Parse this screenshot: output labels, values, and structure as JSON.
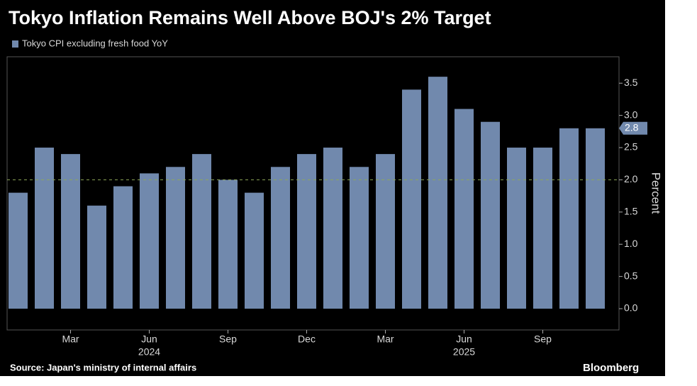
{
  "chart_data": {
    "type": "bar",
    "title": "Tokyo Inflation Remains Well Above BOJ's 2% Target",
    "categories": [
      null,
      null,
      "Mar",
      null,
      null,
      "Jun",
      null,
      null,
      "Sep",
      null,
      null,
      "Dec",
      null,
      null,
      "Mar",
      null,
      null,
      "Jun",
      null,
      null,
      "Sep",
      null,
      null
    ],
    "category_years": [
      null,
      null,
      null,
      null,
      null,
      "2024",
      null,
      null,
      null,
      null,
      null,
      null,
      null,
      null,
      null,
      null,
      null,
      "2025",
      null,
      null,
      null,
      null,
      null
    ],
    "series": [
      {
        "name": "Tokyo CPI excluding fresh food YoY",
        "color": "#7189ad",
        "values": [
          1.8,
          2.5,
          2.4,
          1.6,
          1.9,
          2.1,
          2.2,
          2.4,
          2.0,
          1.8,
          2.2,
          2.4,
          2.5,
          2.2,
          2.4,
          3.4,
          3.6,
          3.1,
          2.9,
          2.5,
          2.5,
          2.8,
          2.8
        ]
      }
    ],
    "y_label": "Percent",
    "ylim": [
      -0.33,
      3.91
    ],
    "yticks": [
      {
        "value": 0,
        "label": "0.0"
      },
      0.5,
      {
        "value": 1,
        "label": "1.0"
      },
      1.5,
      {
        "value": 2,
        "label": "2.0"
      },
      2.5,
      {
        "value": 3,
        "label": "3.0"
      },
      3.5
    ],
    "reference_line": 2.0,
    "reference_color": "#8fa85a",
    "source": "Source: Japan's ministry of internal affairs",
    "brand": "Bloomberg"
  }
}
